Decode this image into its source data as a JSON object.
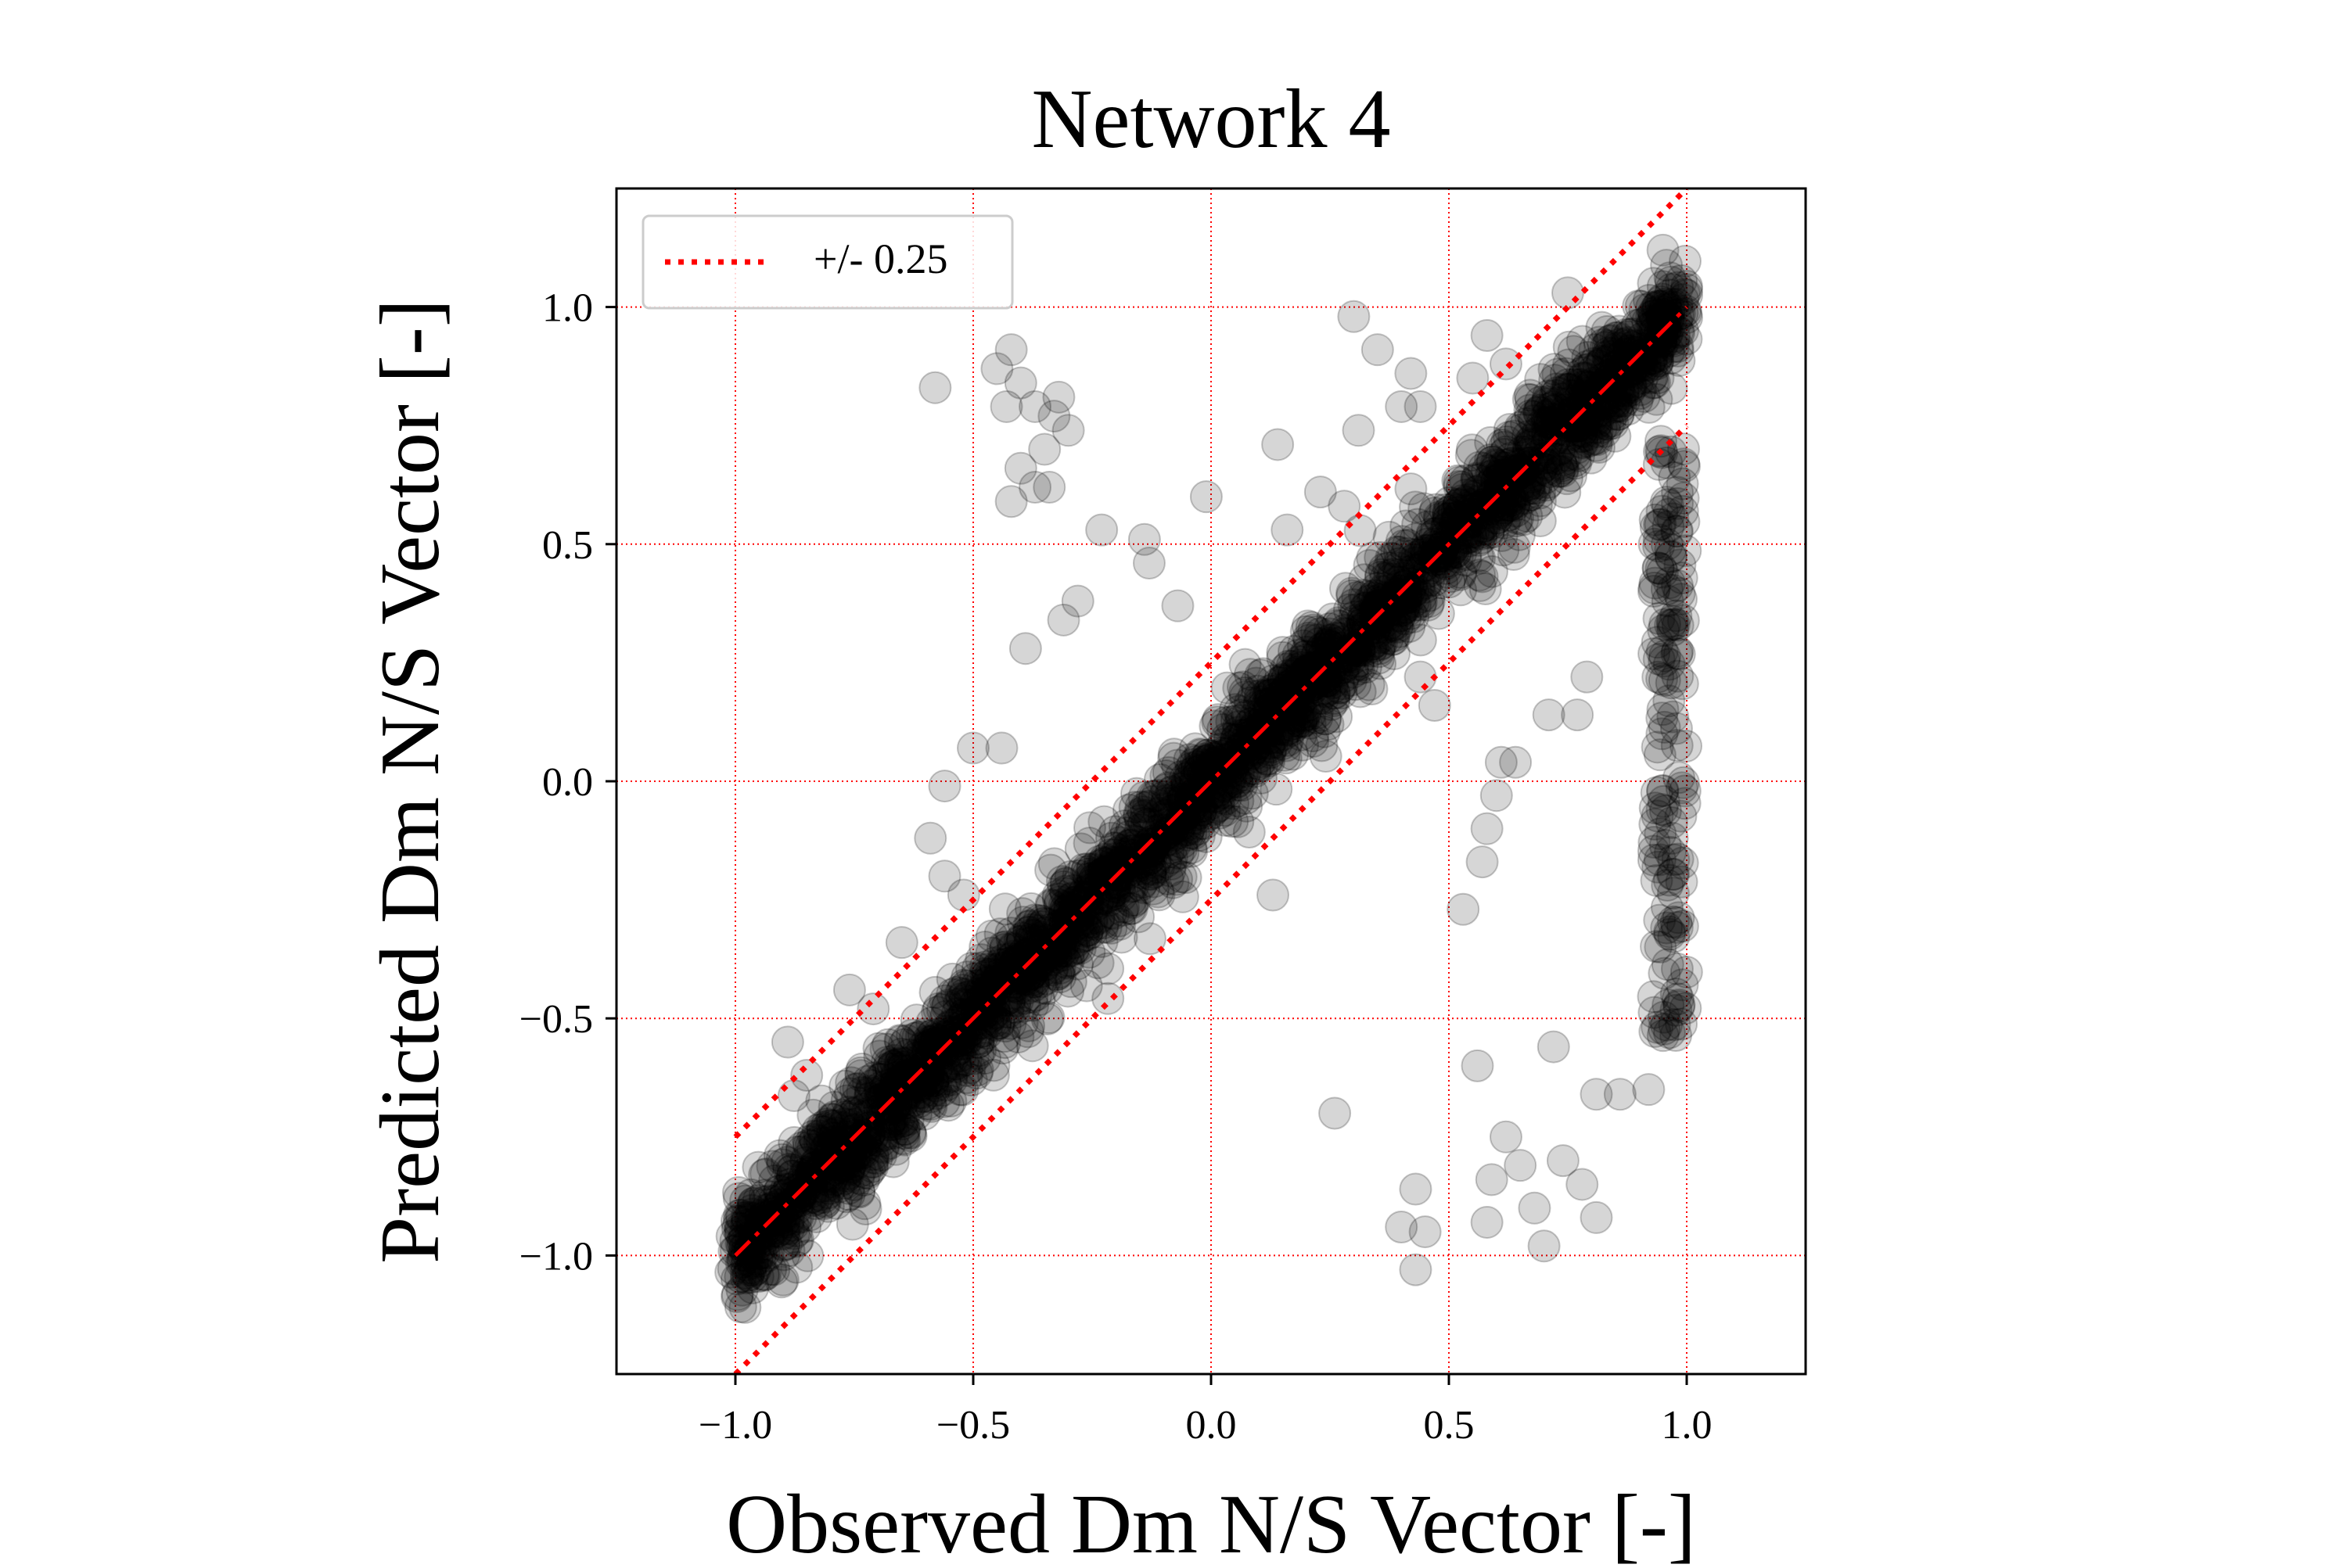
{
  "chart_data": {
    "type": "scatter",
    "title": "Network 4",
    "xlabel": "Observed Dm N/S Vector [-]",
    "ylabel": "Predicted Dm N/S Vector [-]",
    "xlim": [
      -1.25,
      1.25
    ],
    "ylim": [
      -1.25,
      1.25
    ],
    "ticks": [
      -1.0,
      -0.5,
      0.0,
      0.5,
      1.0
    ],
    "tick_labels": [
      "−1.0",
      "−0.5",
      "0.0",
      "0.5",
      "1.0"
    ],
    "grid": true,
    "legend": {
      "placement": "top-left",
      "entries": [
        {
          "label": "+/- 0.25",
          "style": "dotted"
        }
      ]
    },
    "reference_lines": [
      {
        "kind": "identity",
        "style": "dash-dot",
        "x": [
          -1.0,
          1.0
        ],
        "y": [
          -1.0,
          1.0
        ]
      },
      {
        "kind": "upper_bound",
        "offset": 0.25,
        "style": "dotted",
        "x": [
          -1.0,
          1.0
        ],
        "y": [
          -0.75,
          1.25
        ]
      },
      {
        "kind": "lower_bound",
        "offset": -0.25,
        "style": "dotted",
        "x": [
          -1.0,
          1.0
        ],
        "y": [
          -1.25,
          0.75
        ]
      }
    ],
    "colors": {
      "points": "#000000",
      "reference_lines": "#ff0000",
      "grid": "#ff0000"
    },
    "main_band": {
      "description_x_range": [
        -1.0,
        1.0
      ],
      "points_per_unit_x": 1400,
      "spread_sd": 0.06
    },
    "outliers": [
      [
        -0.58,
        0.83
      ],
      [
        -0.45,
        0.87
      ],
      [
        -0.42,
        0.91
      ],
      [
        -0.4,
        0.84
      ],
      [
        -0.43,
        0.79
      ],
      [
        -0.37,
        0.79
      ],
      [
        -0.32,
        0.81
      ],
      [
        -0.33,
        0.77
      ],
      [
        -0.3,
        0.74
      ],
      [
        -0.35,
        0.7
      ],
      [
        -0.4,
        0.66
      ],
      [
        -0.42,
        0.59
      ],
      [
        -0.37,
        0.62
      ],
      [
        -0.34,
        0.62
      ],
      [
        -0.23,
        0.53
      ],
      [
        -0.14,
        0.51
      ],
      [
        -0.13,
        0.46
      ],
      [
        -0.01,
        0.6
      ],
      [
        0.14,
        0.71
      ],
      [
        0.16,
        0.53
      ],
      [
        0.23,
        0.61
      ],
      [
        0.28,
        0.58
      ],
      [
        0.31,
        0.74
      ],
      [
        0.35,
        0.91
      ],
      [
        0.4,
        0.79
      ],
      [
        0.42,
        0.86
      ],
      [
        0.44,
        0.79
      ],
      [
        0.55,
        0.85
      ],
      [
        0.58,
        0.94
      ],
      [
        0.62,
        0.88
      ],
      [
        -0.28,
        0.38
      ],
      [
        -0.31,
        0.34
      ],
      [
        -0.39,
        0.28
      ],
      [
        -0.07,
        0.37
      ],
      [
        -0.56,
        -0.01
      ],
      [
        -0.5,
        0.07
      ],
      [
        -0.44,
        0.07
      ],
      [
        -0.59,
        -0.12
      ],
      [
        -0.56,
        -0.2
      ],
      [
        -0.52,
        -0.24
      ],
      [
        -0.65,
        -0.34
      ],
      [
        -0.71,
        -0.48
      ],
      [
        -0.76,
        -0.44
      ],
      [
        -0.89,
        -0.55
      ],
      [
        -0.85,
        -0.62
      ],
      [
        0.13,
        -0.24
      ],
      [
        0.26,
        -0.7
      ],
      [
        0.4,
        -0.94
      ],
      [
        0.43,
        -0.86
      ],
      [
        0.45,
        -0.95
      ],
      [
        0.43,
        -1.03
      ],
      [
        0.56,
        -0.6
      ],
      [
        0.58,
        -0.93
      ],
      [
        0.59,
        -0.84
      ],
      [
        0.62,
        -0.75
      ],
      [
        0.65,
        -0.81
      ],
      [
        0.68,
        -0.9
      ],
      [
        0.7,
        -0.98
      ],
      [
        0.72,
        -0.56
      ],
      [
        0.74,
        -0.8
      ],
      [
        0.78,
        -0.85
      ],
      [
        0.81,
        -0.92
      ],
      [
        0.81,
        -0.66
      ],
      [
        0.86,
        -0.66
      ],
      [
        0.92,
        -0.65
      ],
      [
        0.53,
        -0.27
      ],
      [
        0.57,
        -0.17
      ],
      [
        0.58,
        -0.1
      ],
      [
        0.6,
        -0.03
      ],
      [
        0.64,
        0.04
      ],
      [
        0.71,
        0.14
      ],
      [
        0.79,
        0.22
      ],
      [
        0.96,
        0.38
      ],
      [
        0.94,
        0.45
      ],
      [
        0.97,
        0.33
      ],
      [
        0.77,
        0.14
      ],
      [
        0.61,
        0.04
      ],
      [
        0.44,
        0.22
      ],
      [
        0.47,
        0.16
      ],
      [
        0.75,
        1.03
      ],
      [
        0.95,
        1.12
      ],
      [
        0.93,
        1.05
      ],
      [
        0.3,
        0.98
      ]
    ],
    "vertical_tail": {
      "x_range": [
        0.93,
        1.0
      ],
      "y_range": [
        -0.55,
        0.75
      ],
      "count": 160
    }
  }
}
